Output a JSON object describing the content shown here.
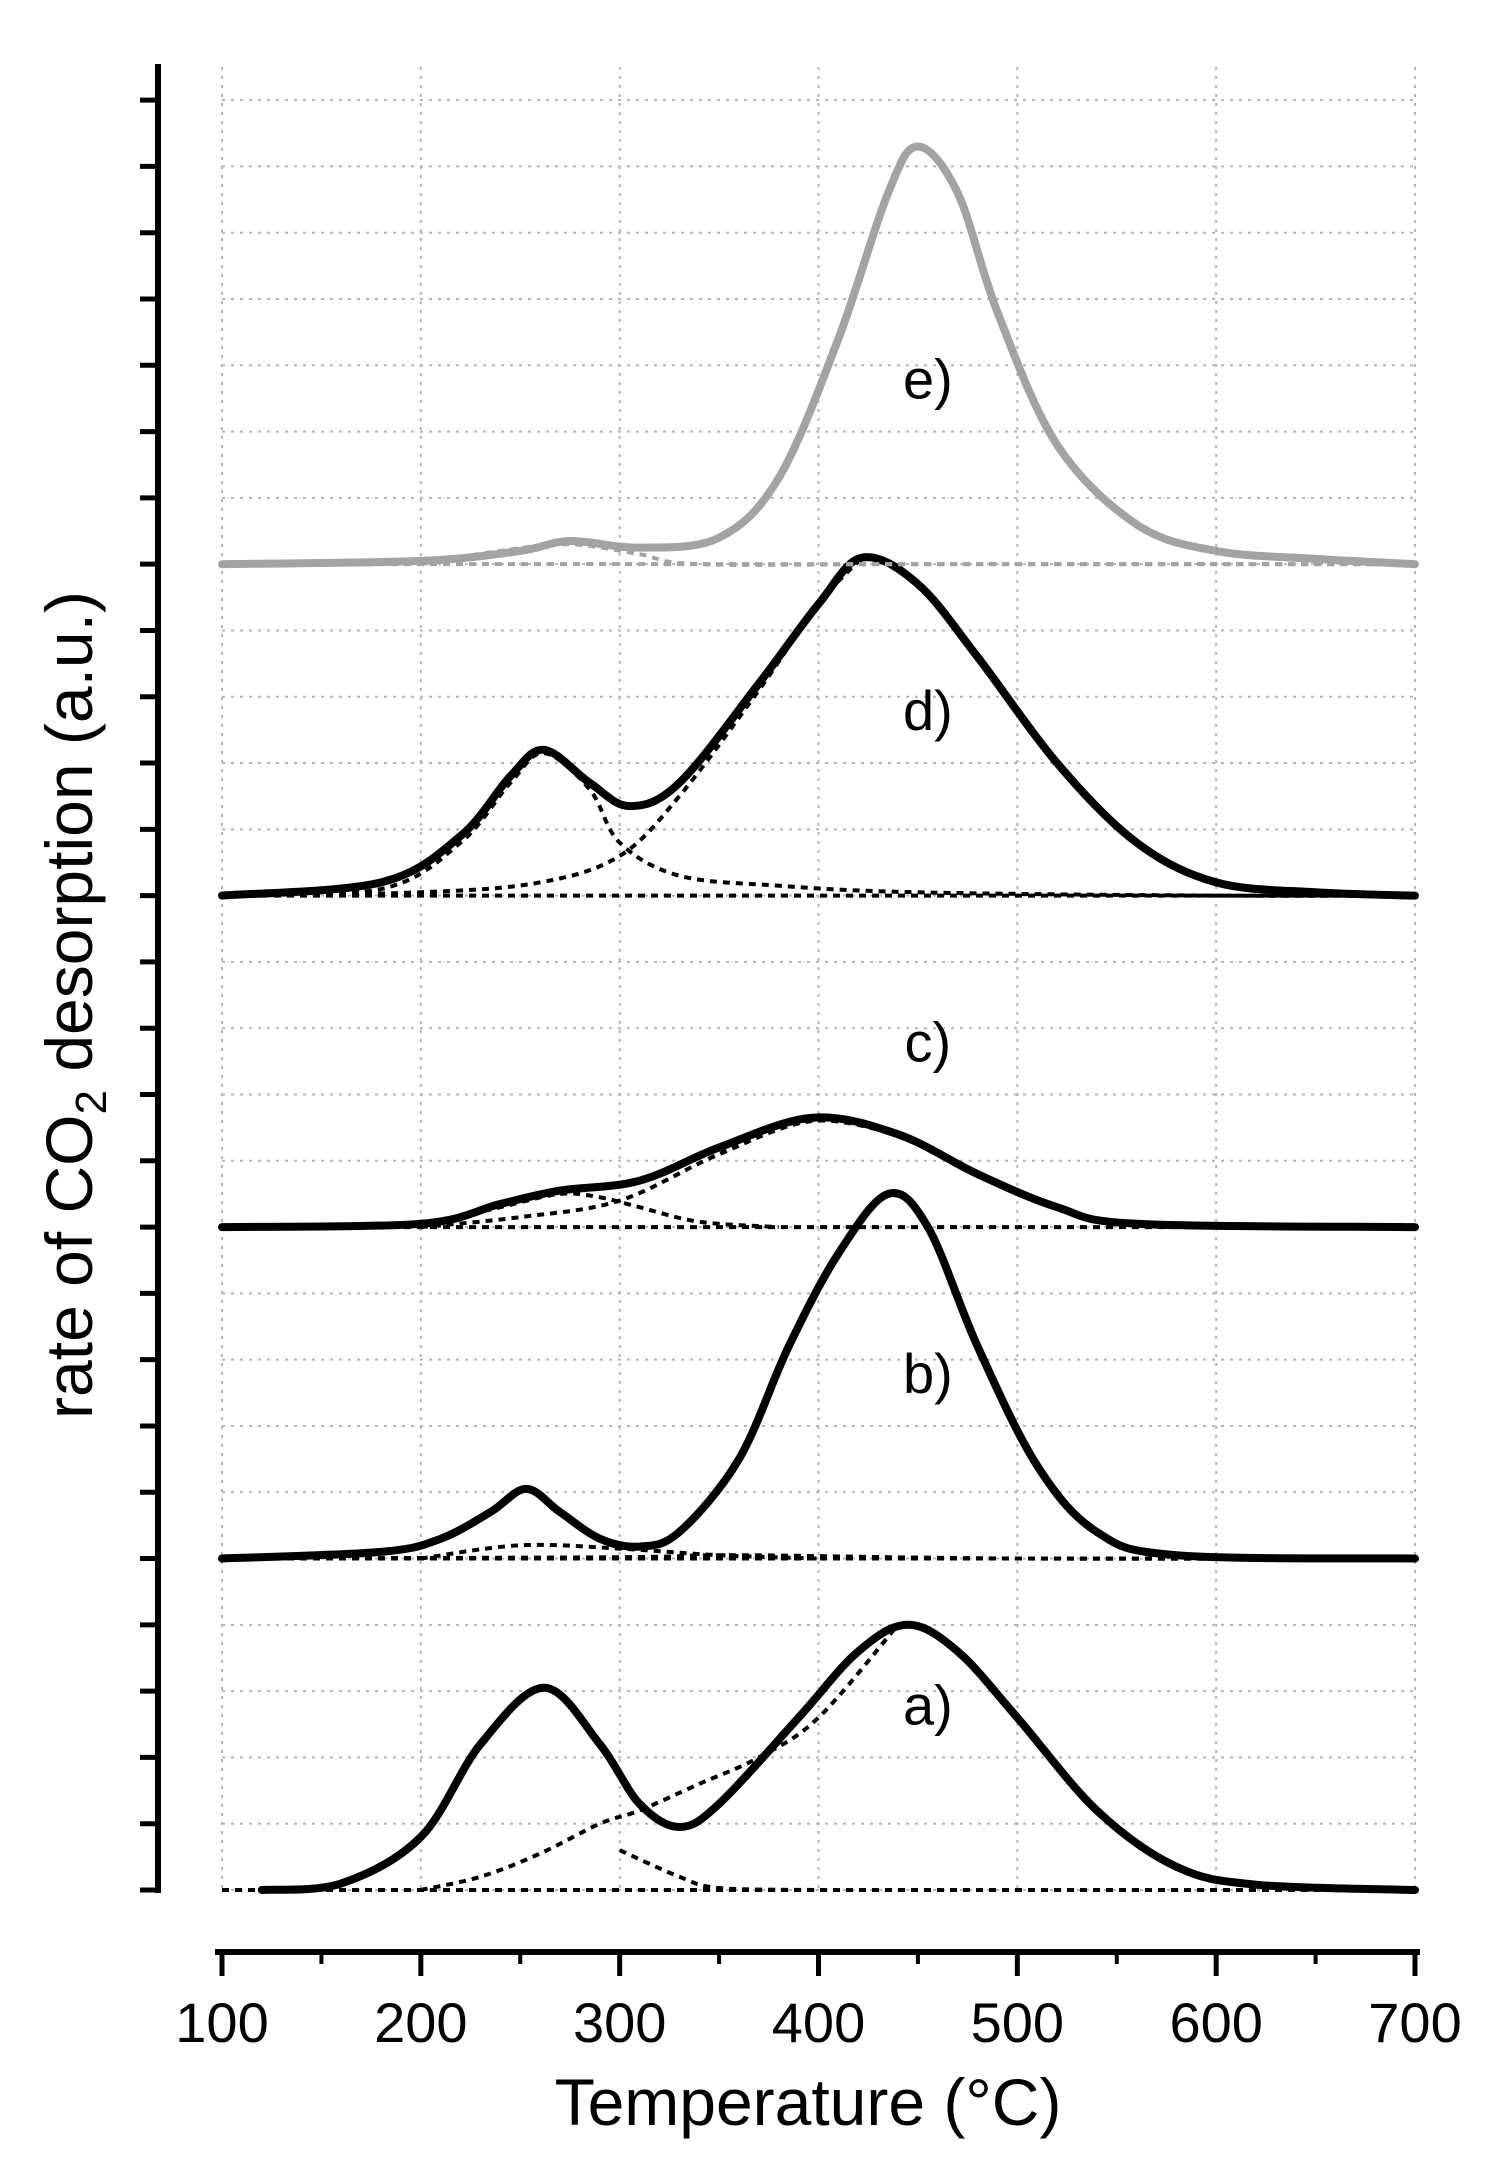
{
  "chart_data": {
    "type": "line",
    "title": "",
    "xlabel": "Temperature (°C)",
    "ylabel_prefix": "rate of CO",
    "ylabel_subscript": "2",
    "ylabel_suffix": " desorption (a.u.)",
    "xlim": [
      100,
      700
    ],
    "x_ticks": [
      100,
      200,
      300,
      400,
      500,
      600,
      700
    ],
    "ylim": [
      0,
      27.5
    ],
    "y_tick_step": 1,
    "y_tick_labels": "none",
    "grid": true,
    "colors": {
      "black": "#000000",
      "gray": "#a3a3a3"
    },
    "series": [
      {
        "name": "a)",
        "label": "a)",
        "label_pos": [
          455,
          2.5
        ],
        "offset": 0,
        "color": "#000000",
        "total": [
          [
            120,
            0
          ],
          [
            160,
            0.1
          ],
          [
            200,
            0.8
          ],
          [
            230,
            2.2
          ],
          [
            262,
            3.05
          ],
          [
            290,
            2.2
          ],
          [
            310,
            1.3
          ],
          [
            330,
            0.95
          ],
          [
            350,
            1.3
          ],
          [
            390,
            2.6
          ],
          [
            420,
            3.6
          ],
          [
            445,
            4.0
          ],
          [
            470,
            3.6
          ],
          [
            500,
            2.6
          ],
          [
            540,
            1.2
          ],
          [
            580,
            0.35
          ],
          [
            620,
            0.08
          ],
          [
            700,
            0.0
          ]
        ],
        "components": [
          [
            [
              200,
              0
            ],
            [
              230,
              0.2
            ],
            [
              260,
              0.55
            ],
            [
              290,
              1.0
            ],
            [
              310,
              1.2
            ],
            [
              340,
              1.6
            ],
            [
              370,
              2.0
            ],
            [
              400,
              2.6
            ],
            [
              440,
              4.0
            ]
          ],
          [
            [
              300,
              0.6
            ],
            [
              330,
              0.2
            ],
            [
              350,
              0.03
            ],
            [
              400,
              0.0
            ]
          ]
        ]
      },
      {
        "name": "b)",
        "label": "b)",
        "label_pos": [
          455,
          7.5
        ],
        "offset": 5,
        "color": "#000000",
        "total": [
          [
            100,
            0
          ],
          [
            180,
            0.1
          ],
          [
            210,
            0.3
          ],
          [
            235,
            0.7
          ],
          [
            253,
            1.05
          ],
          [
            270,
            0.7
          ],
          [
            290,
            0.3
          ],
          [
            310,
            0.18
          ],
          [
            330,
            0.4
          ],
          [
            360,
            1.5
          ],
          [
            385,
            3.2
          ],
          [
            410,
            4.6
          ],
          [
            435,
            5.5
          ],
          [
            455,
            5.0
          ],
          [
            480,
            3.2
          ],
          [
            510,
            1.4
          ],
          [
            540,
            0.4
          ],
          [
            580,
            0.05
          ],
          [
            700,
            0.0
          ]
        ],
        "components": [
          [
            [
              200,
              0
            ],
            [
              250,
              0.2
            ],
            [
              300,
              0.15
            ],
            [
              350,
              0.05
            ],
            [
              400,
              0.0
            ]
          ],
          [
            [
              100,
              0
            ],
            [
              300,
              0.02
            ],
            [
              360,
              0.05
            ],
            [
              500,
              0.0
            ],
            [
              700,
              0.0
            ]
          ]
        ]
      },
      {
        "name": "c)",
        "label": "c)",
        "label_pos": [
          455,
          12.5
        ],
        "offset": 10,
        "color": "#000000",
        "total": [
          [
            100,
            0
          ],
          [
            200,
            0.05
          ],
          [
            240,
            0.35
          ],
          [
            270,
            0.55
          ],
          [
            310,
            0.7
          ],
          [
            350,
            1.2
          ],
          [
            397,
            1.65
          ],
          [
            440,
            1.4
          ],
          [
            480,
            0.8
          ],
          [
            520,
            0.3
          ],
          [
            560,
            0.05
          ],
          [
            700,
            0.0
          ]
        ],
        "components": [
          [
            [
              200,
              0.02
            ],
            [
              240,
              0.3
            ],
            [
              270,
              0.5
            ],
            [
              290,
              0.45
            ],
            [
              310,
              0.3
            ],
            [
              340,
              0.08
            ],
            [
              380,
              0.0
            ]
          ],
          [
            [
              200,
              0.0
            ],
            [
              250,
              0.15
            ],
            [
              300,
              0.4
            ],
            [
              350,
              1.1
            ],
            [
              397,
              1.6
            ],
            [
              440,
              1.4
            ]
          ]
        ]
      },
      {
        "name": "d)",
        "label": "d)",
        "label_pos": [
          455,
          17.5
        ],
        "offset": 15,
        "color": "#000000",
        "total": [
          [
            100,
            0
          ],
          [
            180,
            0.2
          ],
          [
            220,
            0.9
          ],
          [
            245,
            1.8
          ],
          [
            262,
            2.2
          ],
          [
            285,
            1.7
          ],
          [
            305,
            1.35
          ],
          [
            330,
            1.7
          ],
          [
            370,
            3.2
          ],
          [
            400,
            4.4
          ],
          [
            422,
            5.1
          ],
          [
            450,
            4.7
          ],
          [
            480,
            3.6
          ],
          [
            520,
            2.0
          ],
          [
            560,
            0.8
          ],
          [
            600,
            0.2
          ],
          [
            650,
            0.05
          ],
          [
            700,
            0.0
          ]
        ],
        "components": [
          [
            [
              100,
              0
            ],
            [
              180,
              0.1
            ],
            [
              220,
              0.8
            ],
            [
              245,
              1.7
            ],
            [
              262,
              2.15
            ],
            [
              285,
              1.6
            ],
            [
              300,
              0.8
            ],
            [
              330,
              0.3
            ],
            [
              380,
              0.15
            ],
            [
              450,
              0.05
            ],
            [
              600,
              0.0
            ],
            [
              700,
              0.0
            ]
          ],
          [
            [
              100,
              0
            ],
            [
              200,
              0.05
            ],
            [
              260,
              0.2
            ],
            [
              300,
              0.6
            ],
            [
              330,
              1.5
            ],
            [
              370,
              3.1
            ],
            [
              400,
              4.4
            ],
            [
              422,
              5.1
            ]
          ]
        ]
      },
      {
        "name": "e)",
        "label": "e)",
        "label_pos": [
          455,
          22.5
        ],
        "offset": 20,
        "color": "#a3a3a3",
        "total": [
          [
            100,
            0
          ],
          [
            200,
            0.05
          ],
          [
            250,
            0.2
          ],
          [
            275,
            0.35
          ],
          [
            310,
            0.25
          ],
          [
            350,
            0.4
          ],
          [
            380,
            1.3
          ],
          [
            410,
            3.4
          ],
          [
            435,
            5.6
          ],
          [
            450,
            6.3
          ],
          [
            470,
            5.6
          ],
          [
            490,
            3.8
          ],
          [
            520,
            1.8
          ],
          [
            560,
            0.6
          ],
          [
            600,
            0.2
          ],
          [
            650,
            0.08
          ],
          [
            700,
            0.0
          ]
        ],
        "components": [
          [
            [
              200,
              0.0
            ],
            [
              240,
              0.2
            ],
            [
              275,
              0.3
            ],
            [
              310,
              0.15
            ],
            [
              340,
              0.0
            ],
            [
              450,
              0.0
            ],
            [
              700,
              0.0
            ]
          ]
        ]
      }
    ]
  }
}
